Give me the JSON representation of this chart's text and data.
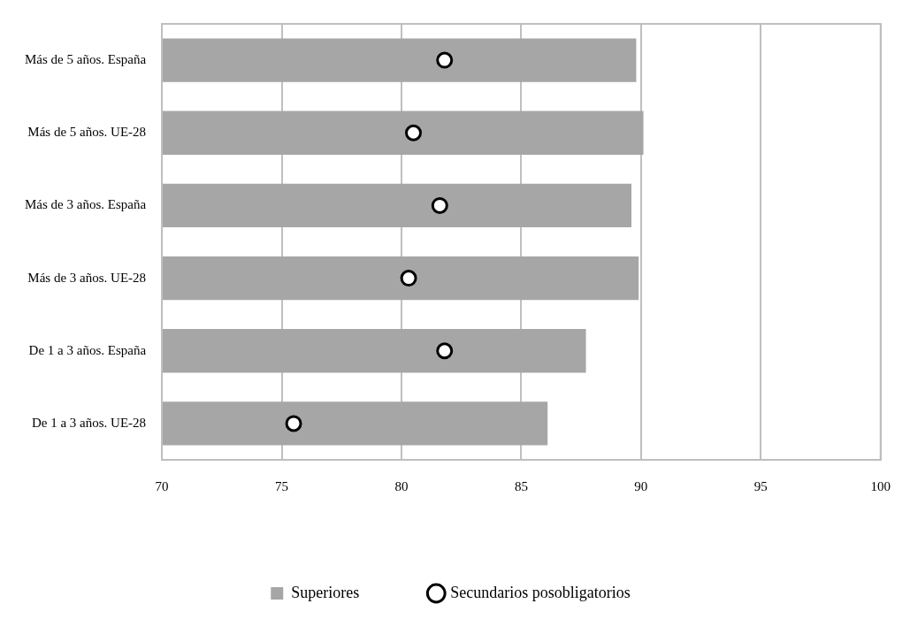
{
  "chart_data": {
    "type": "bar",
    "orientation": "horizontal",
    "categories": [
      "Más de 5 años. España",
      "Más de 5 años. UE-28",
      "Más de 3 años. España",
      "Más de 3 años. UE-28",
      "De 1 a 3 años. España",
      "De 1 a 3 años. UE-28"
    ],
    "series": [
      {
        "name": "Superiores",
        "color": "#a6a6a6",
        "values": [
          89.8,
          90.1,
          89.6,
          89.9,
          87.7,
          86.1
        ]
      },
      {
        "name": "Secundarios posobligatorios",
        "type": "scatter",
        "color": "#000000",
        "values": [
          81.8,
          80.5,
          81.6,
          80.3,
          81.8,
          75.5
        ]
      }
    ],
    "xlim": [
      70,
      100
    ],
    "xticks": [
      70,
      75,
      80,
      85,
      90,
      95,
      100
    ],
    "grid": "x",
    "legend": "bottom",
    "marker": "circle"
  }
}
